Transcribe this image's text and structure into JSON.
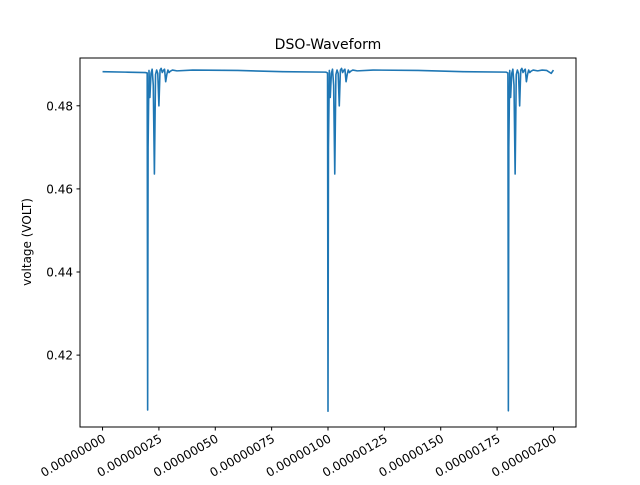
{
  "chart_data": {
    "type": "line",
    "title": "DSO-Waveform",
    "xlabel": "",
    "ylabel": "voltage (VOLT)",
    "xlim": [
      -1e-07,
      2.1e-06
    ],
    "ylim": [
      0.4027,
      0.4915
    ],
    "grid": false,
    "legend": "none",
    "x_ticks": [
      {
        "value": 0.0,
        "label": "0.00000000"
      },
      {
        "value": 2.5e-07,
        "label": "0.00000025"
      },
      {
        "value": 5e-07,
        "label": "0.00000050"
      },
      {
        "value": 7.5e-07,
        "label": "0.00000075"
      },
      {
        "value": 1e-06,
        "label": "0.00000100"
      },
      {
        "value": 1.25e-06,
        "label": "0.00000125"
      },
      {
        "value": 1.5e-06,
        "label": "0.00000150"
      },
      {
        "value": 1.75e-06,
        "label": "0.00000175"
      },
      {
        "value": 2e-06,
        "label": "0.00000200"
      }
    ],
    "y_ticks": [
      {
        "value": 0.42,
        "label": "0.42"
      },
      {
        "value": 0.44,
        "label": "0.44"
      },
      {
        "value": 0.46,
        "label": "0.46"
      },
      {
        "value": 0.48,
        "label": "0.48"
      }
    ],
    "series": [
      {
        "color": "#1f77b4",
        "x": [
          0.0,
          1e-07,
          1.9e-07,
          1.98e-07,
          2e-07,
          2.02e-07,
          2.06e-07,
          2.1e-07,
          2.15e-07,
          2.2e-07,
          2.25e-07,
          2.3e-07,
          2.35e-07,
          2.4e-07,
          2.45e-07,
          2.5e-07,
          2.55e-07,
          2.6e-07,
          2.65e-07,
          2.7e-07,
          2.75e-07,
          2.8e-07,
          2.85e-07,
          2.9e-07,
          2.95e-07,
          3e-07,
          3.1e-07,
          3.3e-07,
          4e-07,
          6e-07,
          8e-07,
          9.9e-07,
          9.98e-07,
          1e-06,
          1.002e-06,
          1.006e-06,
          1.01e-06,
          1.015e-06,
          1.02e-06,
          1.025e-06,
          1.03e-06,
          1.035e-06,
          1.04e-06,
          1.045e-06,
          1.05e-06,
          1.055e-06,
          1.06e-06,
          1.065e-06,
          1.07e-06,
          1.075e-06,
          1.08e-06,
          1.085e-06,
          1.09e-06,
          1.095e-06,
          1.1e-06,
          1.11e-06,
          1.13e-06,
          1.2e-06,
          1.4e-06,
          1.6e-06,
          1.79e-06,
          1.798e-06,
          1.8e-06,
          1.802e-06,
          1.806e-06,
          1.81e-06,
          1.815e-06,
          1.82e-06,
          1.825e-06,
          1.83e-06,
          1.835e-06,
          1.84e-06,
          1.845e-06,
          1.85e-06,
          1.855e-06,
          1.86e-06,
          1.865e-06,
          1.87e-06,
          1.875e-06,
          1.88e-06,
          1.885e-06,
          1.89e-06,
          1.895e-06,
          1.9e-06,
          1.91e-06,
          1.93e-06,
          1.95e-06,
          1.97e-06,
          1.99e-06,
          2e-06
        ],
        "y": [
          0.4882,
          0.4881,
          0.488,
          0.4879,
          0.4068,
          0.47,
          0.4885,
          0.482,
          0.4878,
          0.4888,
          0.485,
          0.4636,
          0.4875,
          0.4886,
          0.4878,
          0.48,
          0.4886,
          0.489,
          0.488,
          0.4885,
          0.4888,
          0.4858,
          0.4875,
          0.4886,
          0.488,
          0.4883,
          0.4886,
          0.4884,
          0.4886,
          0.4885,
          0.4882,
          0.4881,
          0.4879,
          0.4065,
          0.47,
          0.4885,
          0.482,
          0.4878,
          0.4888,
          0.485,
          0.4636,
          0.4875,
          0.4886,
          0.4878,
          0.48,
          0.4886,
          0.489,
          0.488,
          0.4885,
          0.4888,
          0.4858,
          0.4875,
          0.4886,
          0.488,
          0.4883,
          0.4886,
          0.4884,
          0.4886,
          0.4885,
          0.4882,
          0.4881,
          0.4879,
          0.4066,
          0.47,
          0.4885,
          0.482,
          0.4878,
          0.4888,
          0.485,
          0.4636,
          0.4875,
          0.4886,
          0.4878,
          0.48,
          0.4886,
          0.489,
          0.488,
          0.4885,
          0.4888,
          0.4858,
          0.4875,
          0.4886,
          0.488,
          0.4883,
          0.4886,
          0.4884,
          0.4886,
          0.4885,
          0.4878,
          0.4886
        ]
      }
    ]
  }
}
